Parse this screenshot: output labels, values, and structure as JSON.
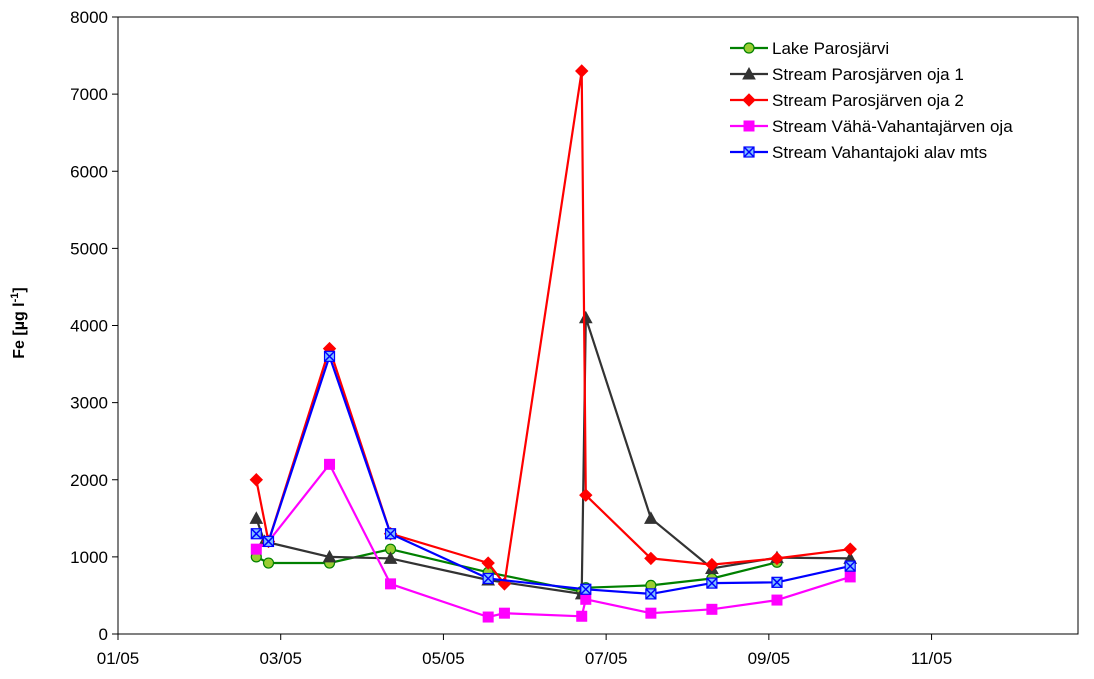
{
  "chart_data": {
    "type": "line",
    "title": "",
    "xlabel": "",
    "ylabel_main": "Fe [µg l",
    "ylabel_sup": "-1",
    "ylabel_end": "]",
    "xlim": [
      0,
      11.8
    ],
    "ylim": [
      0,
      8000
    ],
    "yticks": [
      0,
      1000,
      2000,
      3000,
      4000,
      5000,
      6000,
      7000,
      8000
    ],
    "ytick_labels": [
      "0",
      "1000",
      "2000",
      "3000",
      "4000",
      "5000",
      "6000",
      "7000",
      "8000"
    ],
    "xticks": [
      0,
      2,
      4,
      6,
      8,
      10
    ],
    "xtick_labels": [
      "01/05",
      "03/05",
      "05/05",
      "07/05",
      "09/05",
      "11/05"
    ],
    "grid": false,
    "legend_position": "top-right",
    "series": [
      {
        "name": "Lake Parosjärvi",
        "color": "#008000",
        "marker": "circle",
        "x": [
          1.7,
          1.85,
          2.6,
          3.35,
          4.55,
          5.7,
          5.75,
          6.55,
          7.3,
          8.1
        ],
        "y": [
          1000,
          920,
          920,
          1100,
          800,
          550,
          600,
          630,
          720,
          930
        ]
      },
      {
        "name": "Stream Parosjärven oja 1",
        "color": "#333333",
        "marker": "triangle",
        "x": [
          1.7,
          1.8,
          2.6,
          3.35,
          4.55,
          5.7,
          5.75,
          6.55,
          7.3,
          8.1,
          9.0
        ],
        "y": [
          1500,
          1200,
          1000,
          980,
          700,
          520,
          4100,
          1500,
          850,
          990,
          980
        ]
      },
      {
        "name": "Stream Parosjärven oja 2",
        "color": "#ff0000",
        "marker": "diamond",
        "x": [
          1.7,
          1.85,
          2.6,
          3.35,
          4.55,
          4.75,
          5.7,
          5.75,
          6.55,
          7.3,
          8.1,
          9.0
        ],
        "y": [
          2000,
          1200,
          3700,
          1300,
          920,
          650,
          7300,
          1800,
          980,
          900,
          980,
          1100
        ]
      },
      {
        "name": "Stream Vähä-Vahantajärven oja",
        "color": "#ff00ff",
        "marker": "square",
        "x": [
          1.7,
          1.85,
          2.6,
          3.35,
          4.55,
          4.75,
          5.7,
          5.75,
          6.55,
          7.3,
          8.1,
          9.0
        ],
        "y": [
          1100,
          1200,
          2200,
          650,
          220,
          270,
          230,
          450,
          270,
          320,
          440,
          740
        ]
      },
      {
        "name": "Stream Vahantajoki alav mts",
        "color": "#0000ff",
        "marker": "x-square",
        "x": [
          1.7,
          1.85,
          2.6,
          3.35,
          4.55,
          5.75,
          6.55,
          7.3,
          8.1,
          9.0
        ],
        "y": [
          1300,
          1200,
          3600,
          1300,
          720,
          580,
          520,
          660,
          670,
          880
        ]
      }
    ]
  }
}
